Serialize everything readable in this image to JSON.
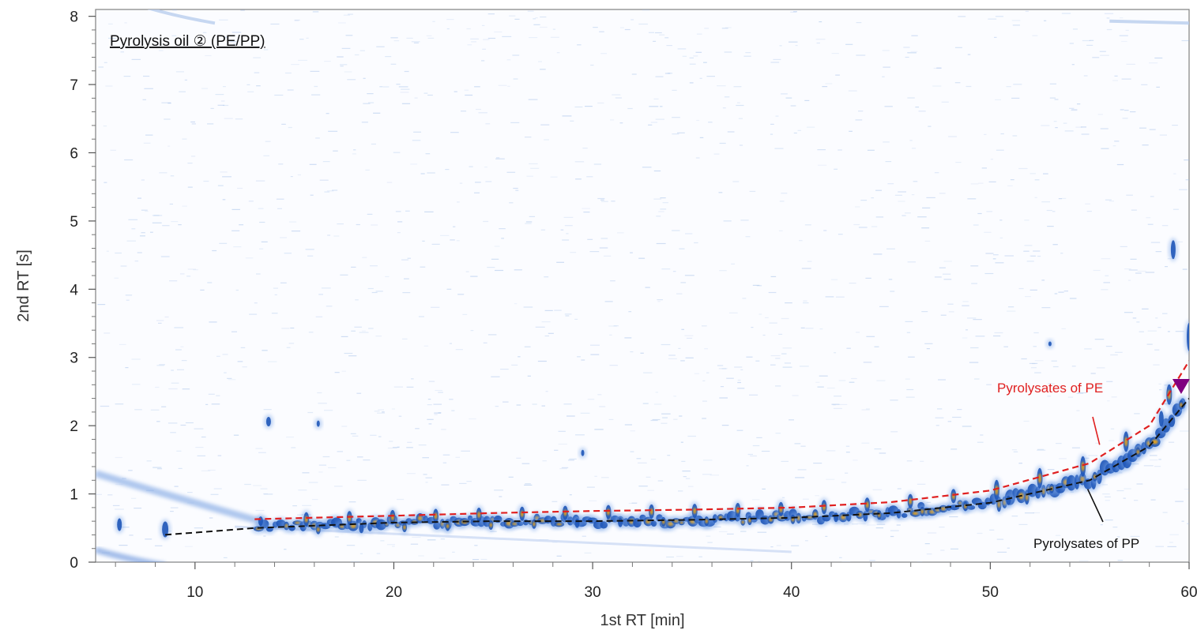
{
  "chart_data": {
    "type": "heatmap",
    "title": "Pyrolysis oil ② (PE/PP)",
    "xlabel": "1st RT [min]",
    "ylabel": "2nd RT [s]",
    "xlim": [
      5,
      60
    ],
    "ylim": [
      0,
      8.1
    ],
    "x_ticks": [
      10,
      20,
      30,
      40,
      50,
      60
    ],
    "y_ticks": [
      0,
      1,
      2,
      3,
      4,
      5,
      6,
      7,
      8
    ],
    "grid": false,
    "colors": {
      "signal": "#2f6fd0",
      "peak": "#e8a317",
      "pe_curve": "#e02020",
      "pp_curve": "#111111",
      "marker": "#800080"
    },
    "series": [
      {
        "name": "Pyrolysates of PE",
        "style": "dashed",
        "x": [
          13,
          20,
          25,
          30,
          35,
          40,
          45,
          50,
          55,
          58,
          60
        ],
        "y": [
          0.63,
          0.68,
          0.72,
          0.75,
          0.77,
          0.8,
          0.88,
          1.05,
          1.45,
          2.0,
          2.95
        ]
      },
      {
        "name": "Pyrolysates of PP",
        "style": "dashed",
        "x": [
          8.5,
          13,
          20,
          25,
          30,
          35,
          40,
          45,
          50,
          55,
          58,
          60
        ],
        "y": [
          0.4,
          0.5,
          0.58,
          0.6,
          0.6,
          0.62,
          0.65,
          0.72,
          0.87,
          1.2,
          1.7,
          2.4
        ]
      }
    ],
    "annotations": [
      {
        "text": "Pyrolysates of PE",
        "color": "#e02020",
        "point_to": [
          55.5,
          1.72
        ]
      },
      {
        "text": "Pyrolysates of PP",
        "color": "#111111",
        "point_to": [
          54.9,
          1.07
        ]
      }
    ],
    "marker": {
      "shape": "triangle-down",
      "x": 59.6,
      "y": 2.58
    }
  }
}
